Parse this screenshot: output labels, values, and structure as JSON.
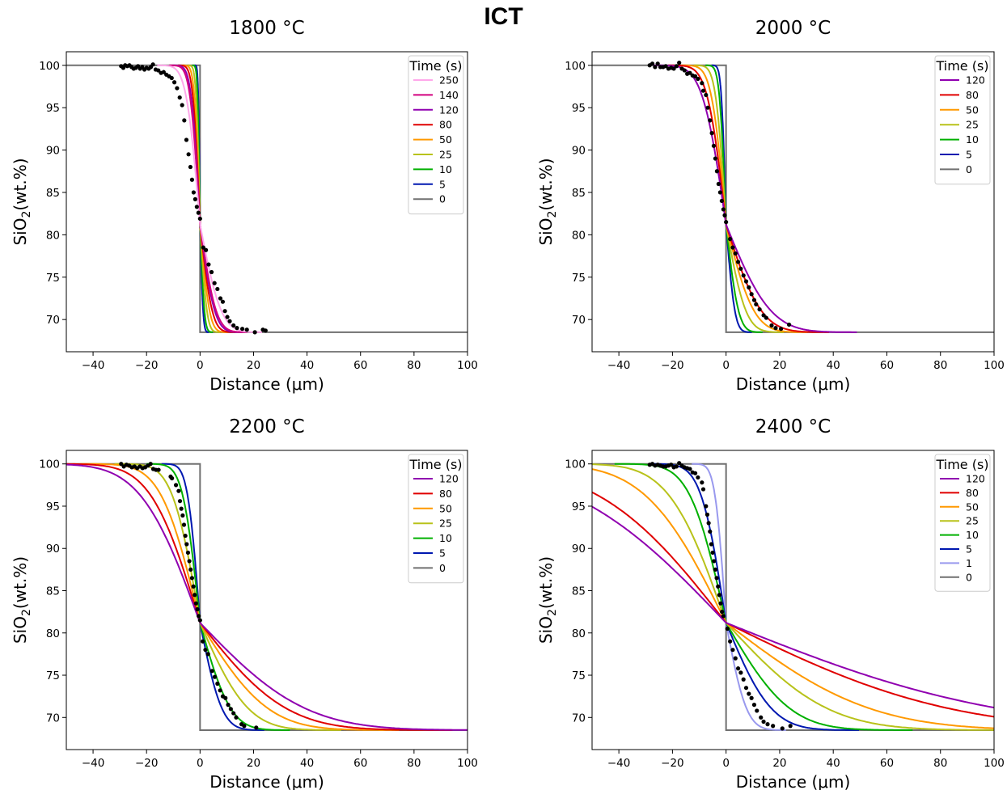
{
  "figure_title": "ICT",
  "chart_data": [
    {
      "type": "line",
      "title": "1800 °C",
      "xlabel": "Distance (μm)",
      "ylabel": "SiO2(wt.%)",
      "xlim": [
        -50,
        100
      ],
      "ylim": [
        66.2,
        101.6
      ],
      "xticks": [
        -40,
        -20,
        0,
        20,
        40,
        60,
        80,
        100
      ],
      "yticks": [
        70,
        75,
        80,
        85,
        90,
        95,
        100
      ],
      "xtick_labels": [
        "−40",
        "−20",
        "0",
        "20",
        "40",
        "60",
        "80",
        "100"
      ],
      "legend_title": "Time (s)",
      "legend_position": "top-right",
      "profile": {
        "c_high": 100,
        "c_low": 68.5,
        "c_mid": 81.2
      },
      "series": [
        {
          "name": "250",
          "color": "#ffa8ea",
          "x_left": -10.0,
          "x_right": 14.5
        },
        {
          "name": "140",
          "color": "#d2007f",
          "x_left": -7.2,
          "x_right": 11.0
        },
        {
          "name": "120",
          "color": "#9000b0",
          "x_left": -6.4,
          "x_right": 10.0
        },
        {
          "name": "80",
          "color": "#e00000",
          "x_left": -5.2,
          "x_right": 8.3
        },
        {
          "name": "50",
          "color": "#ff9900",
          "x_left": -4.1,
          "x_right": 6.5
        },
        {
          "name": "25",
          "color": "#b8c21a",
          "x_left": -2.9,
          "x_right": 4.7
        },
        {
          "name": "10",
          "color": "#00b000",
          "x_left": -1.8,
          "x_right": 3.0
        },
        {
          "name": "5",
          "color": "#0018b0",
          "x_left": -1.3,
          "x_right": 2.1
        },
        {
          "name": "0",
          "color": "#707070",
          "x_left": 0,
          "x_right": 0
        }
      ],
      "measured_points": [
        [
          -29.5,
          99.9
        ],
        [
          -28.7,
          99.7
        ],
        [
          -28.0,
          100.0
        ],
        [
          -27.2,
          99.9
        ],
        [
          -26.4,
          100.0
        ],
        [
          -25.6,
          99.8
        ],
        [
          -24.8,
          99.6
        ],
        [
          -24.0,
          99.7
        ],
        [
          -23.2,
          99.9
        ],
        [
          -22.4,
          99.6
        ],
        [
          -21.6,
          99.8
        ],
        [
          -20.8,
          99.5
        ],
        [
          -20.0,
          99.7
        ],
        [
          -19.2,
          99.6
        ],
        [
          -18.4,
          99.8
        ],
        [
          -17.6,
          100.1
        ],
        [
          -16.6,
          99.5
        ],
        [
          -15.6,
          99.4
        ],
        [
          -14.6,
          99.1
        ],
        [
          -13.6,
          99.2
        ],
        [
          -12.6,
          98.9
        ],
        [
          -11.6,
          98.7
        ],
        [
          -10.6,
          98.5
        ],
        [
          -9.6,
          98.0
        ],
        [
          -8.6,
          97.3
        ],
        [
          -7.6,
          96.2
        ],
        [
          -6.7,
          95.3
        ],
        [
          -5.9,
          93.5
        ],
        [
          -5.1,
          91.2
        ],
        [
          -4.3,
          89.5
        ],
        [
          -3.6,
          88.0
        ],
        [
          -3.0,
          86.5
        ],
        [
          -2.4,
          85.0
        ],
        [
          -1.8,
          84.2
        ],
        [
          -1.2,
          83.3
        ],
        [
          -0.6,
          82.6
        ],
        [
          0.0,
          81.9
        ],
        [
          1.2,
          78.5
        ],
        [
          2.2,
          78.2
        ],
        [
          3.2,
          76.5
        ],
        [
          4.3,
          75.6
        ],
        [
          5.4,
          74.3
        ],
        [
          6.5,
          73.6
        ],
        [
          7.6,
          72.5
        ],
        [
          8.5,
          72.1
        ],
        [
          9.3,
          71.0
        ],
        [
          10.2,
          70.3
        ],
        [
          11.1,
          69.8
        ],
        [
          12.5,
          69.3
        ],
        [
          13.8,
          69.0
        ],
        [
          15.8,
          68.9
        ],
        [
          17.5,
          68.8
        ],
        [
          20.5,
          68.5
        ],
        [
          23.5,
          68.8
        ],
        [
          24.5,
          68.7
        ]
      ]
    },
    {
      "type": "line",
      "title": "2000 °C",
      "xlabel": "Distance (μm)",
      "ylabel": "SiO2(wt.%)",
      "xlim": [
        -50,
        100
      ],
      "ylim": [
        66.2,
        101.6
      ],
      "xticks": [
        -40,
        -20,
        0,
        20,
        40,
        60,
        80,
        100
      ],
      "yticks": [
        70,
        75,
        80,
        85,
        90,
        95,
        100
      ],
      "xtick_labels": [
        "−40",
        "−20",
        "0",
        "20",
        "40",
        "60",
        "80",
        "100"
      ],
      "legend_title": "Time (s)",
      "legend_position": "top-right",
      "profile": {
        "c_high": 100,
        "c_low": 68.5,
        "c_mid": 81.2
      },
      "series": [
        {
          "name": "120",
          "color": "#9000b0",
          "x_left": -17.0,
          "x_right": 30.5
        },
        {
          "name": "80",
          "color": "#e00000",
          "x_left": -13.5,
          "x_right": 24.0
        },
        {
          "name": "50",
          "color": "#ff9900",
          "x_left": -10.5,
          "x_right": 19.0
        },
        {
          "name": "25",
          "color": "#b8c21a",
          "x_left": -7.5,
          "x_right": 13.5
        },
        {
          "name": "10",
          "color": "#00b000",
          "x_left": -4.8,
          "x_right": 8.5
        },
        {
          "name": "5",
          "color": "#0018b0",
          "x_left": -3.4,
          "x_right": 6.0
        },
        {
          "name": "0",
          "color": "#707070",
          "x_left": 0,
          "x_right": 0
        }
      ],
      "measured_points": [
        [
          -28.5,
          100.0
        ],
        [
          -27.5,
          100.2
        ],
        [
          -26.5,
          99.8
        ],
        [
          -25.5,
          100.2
        ],
        [
          -24.5,
          99.8
        ],
        [
          -23.5,
          99.8
        ],
        [
          -22.5,
          99.9
        ],
        [
          -21.5,
          99.6
        ],
        [
          -20.5,
          99.7
        ],
        [
          -19.5,
          99.6
        ],
        [
          -18.5,
          99.9
        ],
        [
          -17.5,
          100.3
        ],
        [
          -16.5,
          99.6
        ],
        [
          -15.5,
          99.4
        ],
        [
          -14.5,
          99.0
        ],
        [
          -13.5,
          99.1
        ],
        [
          -12.5,
          98.8
        ],
        [
          -11.5,
          98.7
        ],
        [
          -10.5,
          98.4
        ],
        [
          -9.0,
          97.9
        ],
        [
          -8.5,
          97.0
        ],
        [
          -7.5,
          96.5
        ],
        [
          -6.8,
          95.0
        ],
        [
          -6.0,
          93.5
        ],
        [
          -5.3,
          92.0
        ],
        [
          -4.6,
          90.5
        ],
        [
          -4.0,
          89.0
        ],
        [
          -3.4,
          87.5
        ],
        [
          -2.8,
          86.0
        ],
        [
          -2.2,
          85.0
        ],
        [
          -1.6,
          84.0
        ],
        [
          -1.0,
          83.0
        ],
        [
          -0.5,
          82.3
        ],
        [
          0.0,
          81.5
        ],
        [
          1.5,
          79.5
        ],
        [
          2.5,
          78.5
        ],
        [
          3.5,
          77.8
        ],
        [
          4.5,
          76.8
        ],
        [
          5.5,
          76.0
        ],
        [
          6.5,
          75.2
        ],
        [
          7.5,
          74.5
        ],
        [
          8.5,
          73.8
        ],
        [
          9.5,
          73.0
        ],
        [
          10.5,
          72.3
        ],
        [
          11.2,
          71.8
        ],
        [
          12.5,
          71.2
        ],
        [
          14.0,
          70.5
        ],
        [
          15.0,
          70.2
        ],
        [
          17.0,
          69.3
        ],
        [
          18.5,
          69.0
        ],
        [
          20.5,
          68.9
        ],
        [
          23.5,
          69.4
        ]
      ]
    },
    {
      "type": "line",
      "title": "2200 °C",
      "xlabel": "Distance (μm)",
      "ylabel": "SiO2(wt.%)",
      "xlim": [
        -50,
        100
      ],
      "ylim": [
        66.2,
        101.6
      ],
      "xticks": [
        -40,
        -20,
        0,
        20,
        40,
        60,
        80,
        100
      ],
      "yticks": [
        70,
        75,
        80,
        85,
        90,
        95,
        100
      ],
      "xtick_labels": [
        "−40",
        "−20",
        "0",
        "20",
        "40",
        "60",
        "80",
        "100"
      ],
      "legend_title": "Time (s)",
      "legend_position": "top-right",
      "profile": {
        "c_high": 100,
        "c_low": 68.5,
        "c_mid": 81.2
      },
      "series": [
        {
          "name": "120",
          "color": "#9000b0",
          "x_left": -43.0,
          "x_right": 72.0
        },
        {
          "name": "80",
          "color": "#e00000",
          "x_left": -35.5,
          "x_right": 59.0
        },
        {
          "name": "50",
          "color": "#ff9900",
          "x_left": -28.0,
          "x_right": 46.5
        },
        {
          "name": "25",
          "color": "#b8c21a",
          "x_left": -20.0,
          "x_right": 33.0
        },
        {
          "name": "10",
          "color": "#00b000",
          "x_left": -12.5,
          "x_right": 21.0
        },
        {
          "name": "5",
          "color": "#0018b0",
          "x_left": -9.0,
          "x_right": 15.0
        },
        {
          "name": "0",
          "color": "#707070",
          "x_left": 0,
          "x_right": 0
        }
      ],
      "measured_points": [
        [
          -29.5,
          100.0
        ],
        [
          -28.5,
          99.7
        ],
        [
          -27.5,
          99.9
        ],
        [
          -26.5,
          99.8
        ],
        [
          -25.5,
          99.6
        ],
        [
          -24.5,
          99.7
        ],
        [
          -23.5,
          99.5
        ],
        [
          -22.5,
          99.7
        ],
        [
          -21.5,
          99.5
        ],
        [
          -20.5,
          99.6
        ],
        [
          -19.5,
          99.8
        ],
        [
          -18.5,
          100.0
        ],
        [
          -17.5,
          99.4
        ],
        [
          -16.5,
          99.3
        ],
        [
          -15.5,
          99.3
        ],
        [
          -11.0,
          98.5
        ],
        [
          -10.5,
          98.3
        ],
        [
          -9.0,
          97.5
        ],
        [
          -8.0,
          96.8
        ],
        [
          -7.5,
          95.6
        ],
        [
          -7.0,
          94.7
        ],
        [
          -6.5,
          93.9
        ],
        [
          -6.0,
          92.8
        ],
        [
          -5.5,
          91.5
        ],
        [
          -5.0,
          90.5
        ],
        [
          -4.5,
          89.5
        ],
        [
          -4.0,
          88.5
        ],
        [
          -3.5,
          87.5
        ],
        [
          -3.0,
          86.5
        ],
        [
          -2.5,
          85.5
        ],
        [
          -2.0,
          84.5
        ],
        [
          -1.5,
          83.5
        ],
        [
          -1.0,
          82.8
        ],
        [
          -0.5,
          82.0
        ],
        [
          0.0,
          81.5
        ],
        [
          1.0,
          79.0
        ],
        [
          2.0,
          78.0
        ],
        [
          3.0,
          77.5
        ],
        [
          4.5,
          75.5
        ],
        [
          5.5,
          74.8
        ],
        [
          6.5,
          74.0
        ],
        [
          7.5,
          73.2
        ],
        [
          8.5,
          72.5
        ],
        [
          9.5,
          72.3
        ],
        [
          10.5,
          71.5
        ],
        [
          11.5,
          71.0
        ],
        [
          12.5,
          70.5
        ],
        [
          13.5,
          70.0
        ],
        [
          15.5,
          69.2
        ],
        [
          16.5,
          69.0
        ],
        [
          21.0,
          68.8
        ]
      ]
    },
    {
      "type": "line",
      "title": "2400 °C",
      "xlabel": "Distance (μm)",
      "ylabel": "SiO2(wt.%)",
      "xlim": [
        -50,
        100
      ],
      "ylim": [
        66.2,
        101.6
      ],
      "xticks": [
        -40,
        -20,
        0,
        20,
        40,
        60,
        80,
        100
      ],
      "yticks": [
        70,
        75,
        80,
        85,
        90,
        95,
        100
      ],
      "xtick_labels": [
        "−40",
        "−20",
        "0",
        "20",
        "40",
        "60",
        "80",
        "100"
      ],
      "legend_title": "Time (s)",
      "legend_position": "top-right",
      "profile": {
        "c_high": 100,
        "c_low": 68.5,
        "c_mid": 81.2
      },
      "series": [
        {
          "name": "120",
          "color": "#9000b0",
          "x_left": -112.0,
          "x_right": 186.0
        },
        {
          "name": "80",
          "color": "#e00000",
          "x_left": -92.0,
          "x_right": 152.0
        },
        {
          "name": "50",
          "color": "#ff9900",
          "x_left": -58.0,
          "x_right": 98.0
        },
        {
          "name": "25",
          "color": "#b8c21a",
          "x_left": -41.0,
          "x_right": 69.0
        },
        {
          "name": "10",
          "color": "#00b000",
          "x_left": -26.0,
          "x_right": 43.5
        },
        {
          "name": "5",
          "color": "#0018b0",
          "x_left": -18.0,
          "x_right": 31.0
        },
        {
          "name": "1",
          "color": "#9999ee",
          "x_left": -8.0,
          "x_right": 14.0
        },
        {
          "name": "0",
          "color": "#707070",
          "x_left": 0,
          "x_right": 0
        }
      ],
      "measured_points": [
        [
          -28.5,
          99.9
        ],
        [
          -27.5,
          100.0
        ],
        [
          -26.5,
          99.8
        ],
        [
          -25.5,
          99.9
        ],
        [
          -24.5,
          99.8
        ],
        [
          -23.5,
          99.7
        ],
        [
          -22.5,
          99.7
        ],
        [
          -21.5,
          99.8
        ],
        [
          -20.5,
          99.9
        ],
        [
          -19.5,
          99.6
        ],
        [
          -18.5,
          99.7
        ],
        [
          -17.5,
          100.1
        ],
        [
          -16.5,
          99.8
        ],
        [
          -15.5,
          99.6
        ],
        [
          -14.5,
          99.5
        ],
        [
          -13.5,
          99.4
        ],
        [
          -12.5,
          99.0
        ],
        [
          -11.5,
          98.9
        ],
        [
          -10.5,
          98.4
        ],
        [
          -9.0,
          97.8
        ],
        [
          -8.5,
          97.0
        ],
        [
          -7.5,
          95.0
        ],
        [
          -7.0,
          94.0
        ],
        [
          -6.5,
          93.0
        ],
        [
          -6.0,
          92.0
        ],
        [
          -5.5,
          90.5
        ],
        [
          -5.0,
          89.5
        ],
        [
          -4.5,
          88.5
        ],
        [
          -4.0,
          87.5
        ],
        [
          -3.5,
          86.5
        ],
        [
          -3.0,
          85.5
        ],
        [
          -2.5,
          84.5
        ],
        [
          -2.0,
          83.5
        ],
        [
          -1.5,
          82.5
        ],
        [
          -1.0,
          82.0
        ],
        [
          0.5,
          80.5
        ],
        [
          1.5,
          79.0
        ],
        [
          2.5,
          78.0
        ],
        [
          3.5,
          77.0
        ],
        [
          4.5,
          75.8
        ],
        [
          5.5,
          75.3
        ],
        [
          6.5,
          74.5
        ],
        [
          7.5,
          73.5
        ],
        [
          8.5,
          72.8
        ],
        [
          9.5,
          72.3
        ],
        [
          10.5,
          71.5
        ],
        [
          11.5,
          70.8
        ],
        [
          13.0,
          70.0
        ],
        [
          14.0,
          69.5
        ],
        [
          15.5,
          69.2
        ],
        [
          17.5,
          69.0
        ],
        [
          21.0,
          68.7
        ],
        [
          24.0,
          69.0
        ]
      ]
    }
  ]
}
